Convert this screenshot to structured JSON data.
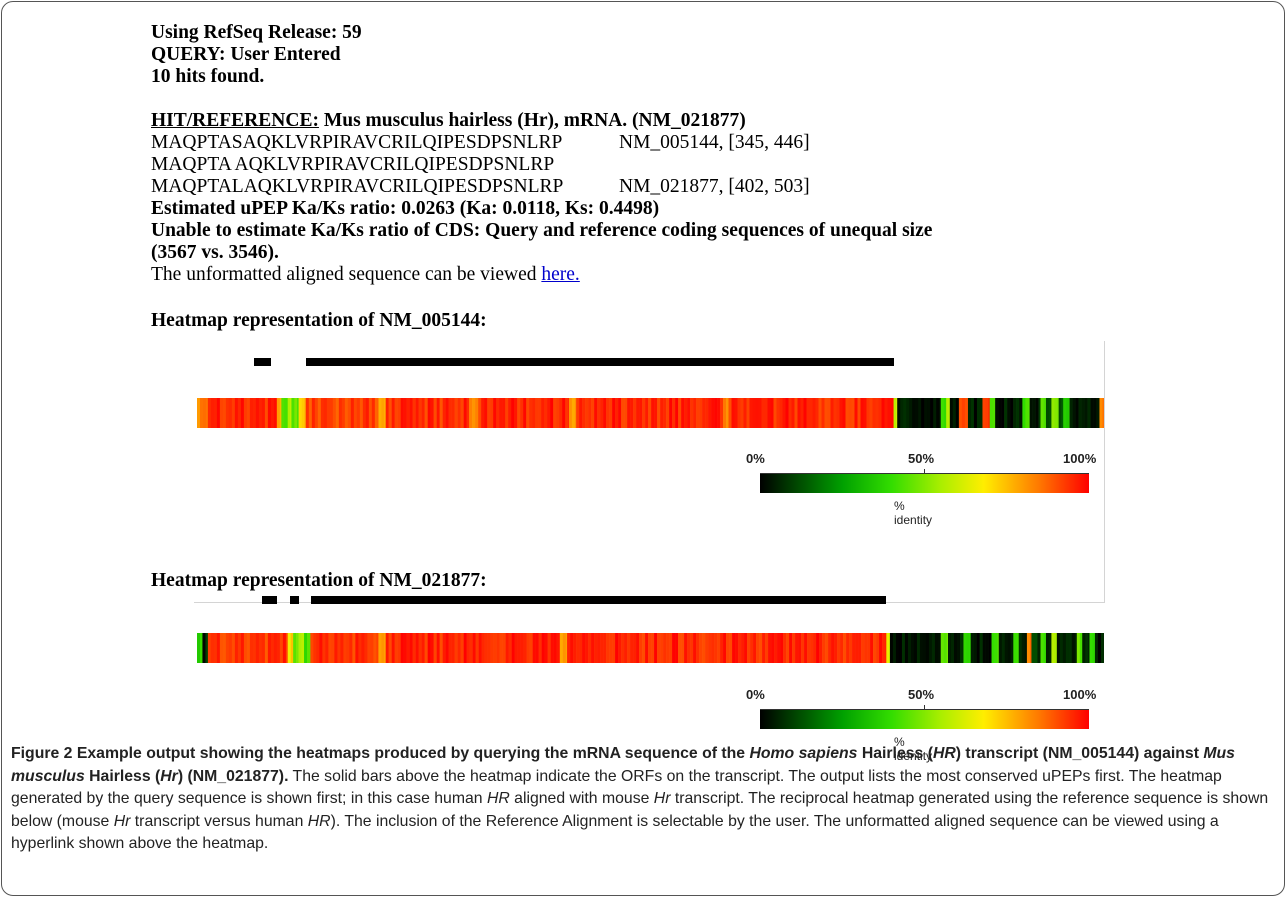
{
  "header": {
    "release": "Using RefSeq Release: 59",
    "query": "QUERY: User Entered",
    "hits": "10 hits found."
  },
  "hit": {
    "label": "HIT/REFERENCE:",
    "title": "Mus musculus hairless (Hr), mRNA. (NM_021877)",
    "seq_query": "MAQPTASAQKLVRPIRAVCRILQIPESDPSNLRP",
    "seq_query_ref": "NM_005144, [345, 446]",
    "seq_match": "MAQPTA AQKLVRPIRAVCRILQIPESDPSNLRP",
    "seq_ref": "MAQPTALAQKLVRPIRAVCRILQIPESDPSNLRP",
    "seq_ref_ref": "NM_021877, [402, 503]",
    "kaks_upep": "Estimated uPEP Ka/Ks ratio: 0.0263 (Ka: 0.0118, Ks: 0.4498)",
    "kaks_cds_1": "Unable to estimate Ka/Ks ratio of CDS: Query and reference coding sequences of unequal size",
    "kaks_cds_2": "(3567 vs. 3546).",
    "unformatted_prefix": "The unformatted aligned sequence can be viewed ",
    "unformatted_link": "here."
  },
  "heatmaps": [
    {
      "heading": "Heatmap representation of NM_005144:",
      "legend": {
        "min": "0%",
        "mid": "50%",
        "max": "100%",
        "caption": "% identity"
      },
      "orfs": [
        [
          0.0625,
          0.082
        ],
        [
          0.12,
          0.768
        ]
      ],
      "identity": [
        {
          "start": 0,
          "end": 0.012,
          "pct": 85
        },
        {
          "start": 0.012,
          "end": 0.088,
          "pct": 95
        },
        {
          "start": 0.088,
          "end": 0.093,
          "pct": 80
        },
        {
          "start": 0.093,
          "end": 0.1,
          "pct": 40
        },
        {
          "start": 0.1,
          "end": 0.104,
          "pct": 60
        },
        {
          "start": 0.104,
          "end": 0.112,
          "pct": 45
        },
        {
          "start": 0.112,
          "end": 0.12,
          "pct": 75
        },
        {
          "start": 0.12,
          "end": 0.2,
          "pct": 92
        },
        {
          "start": 0.2,
          "end": 0.208,
          "pct": 78
        },
        {
          "start": 0.208,
          "end": 0.3,
          "pct": 94
        },
        {
          "start": 0.3,
          "end": 0.31,
          "pct": 80
        },
        {
          "start": 0.31,
          "end": 0.41,
          "pct": 95
        },
        {
          "start": 0.41,
          "end": 0.418,
          "pct": 82
        },
        {
          "start": 0.418,
          "end": 0.58,
          "pct": 95
        },
        {
          "start": 0.58,
          "end": 0.586,
          "pct": 80
        },
        {
          "start": 0.586,
          "end": 0.768,
          "pct": 95
        },
        {
          "start": 0.768,
          "end": 0.772,
          "pct": 60
        },
        {
          "start": 0.772,
          "end": 0.82,
          "pct": 3
        },
        {
          "start": 0.82,
          "end": 0.826,
          "pct": 40
        },
        {
          "start": 0.826,
          "end": 0.83,
          "pct": 60
        },
        {
          "start": 0.83,
          "end": 0.84,
          "pct": 3
        },
        {
          "start": 0.84,
          "end": 0.85,
          "pct": 90
        },
        {
          "start": 0.85,
          "end": 0.866,
          "pct": 3
        },
        {
          "start": 0.866,
          "end": 0.874,
          "pct": 92
        },
        {
          "start": 0.874,
          "end": 0.88,
          "pct": 45
        },
        {
          "start": 0.88,
          "end": 0.91,
          "pct": 3
        },
        {
          "start": 0.91,
          "end": 0.918,
          "pct": 42
        },
        {
          "start": 0.918,
          "end": 0.93,
          "pct": 5
        },
        {
          "start": 0.93,
          "end": 0.936,
          "pct": 45
        },
        {
          "start": 0.936,
          "end": 0.942,
          "pct": 15
        },
        {
          "start": 0.942,
          "end": 0.95,
          "pct": 50
        },
        {
          "start": 0.95,
          "end": 0.955,
          "pct": 10
        },
        {
          "start": 0.955,
          "end": 0.962,
          "pct": 40
        },
        {
          "start": 0.962,
          "end": 0.995,
          "pct": 3
        },
        {
          "start": 0.995,
          "end": 1.0,
          "pct": 85
        }
      ]
    },
    {
      "heading": "Heatmap representation of NM_021877:",
      "legend": {
        "min": "0%",
        "mid": "50%",
        "max": "100%",
        "caption": "% identity"
      },
      "orfs": [
        [
          0.072,
          0.088
        ],
        [
          0.102,
          0.112
        ],
        [
          0.126,
          0.76
        ]
      ],
      "identity": [
        {
          "start": 0,
          "end": 0.006,
          "pct": 40
        },
        {
          "start": 0.006,
          "end": 0.012,
          "pct": 5
        },
        {
          "start": 0.012,
          "end": 0.1,
          "pct": 93
        },
        {
          "start": 0.1,
          "end": 0.106,
          "pct": 70
        },
        {
          "start": 0.106,
          "end": 0.112,
          "pct": 45
        },
        {
          "start": 0.112,
          "end": 0.118,
          "pct": 60
        },
        {
          "start": 0.118,
          "end": 0.125,
          "pct": 42
        },
        {
          "start": 0.125,
          "end": 0.2,
          "pct": 94
        },
        {
          "start": 0.2,
          "end": 0.208,
          "pct": 80
        },
        {
          "start": 0.208,
          "end": 0.4,
          "pct": 95
        },
        {
          "start": 0.4,
          "end": 0.408,
          "pct": 82
        },
        {
          "start": 0.408,
          "end": 0.76,
          "pct": 95
        },
        {
          "start": 0.76,
          "end": 0.764,
          "pct": 60
        },
        {
          "start": 0.764,
          "end": 0.82,
          "pct": 3
        },
        {
          "start": 0.82,
          "end": 0.828,
          "pct": 45
        },
        {
          "start": 0.828,
          "end": 0.845,
          "pct": 3
        },
        {
          "start": 0.845,
          "end": 0.853,
          "pct": 42
        },
        {
          "start": 0.853,
          "end": 0.876,
          "pct": 3
        },
        {
          "start": 0.876,
          "end": 0.884,
          "pct": 44
        },
        {
          "start": 0.884,
          "end": 0.9,
          "pct": 5
        },
        {
          "start": 0.9,
          "end": 0.906,
          "pct": 45
        },
        {
          "start": 0.906,
          "end": 0.915,
          "pct": 5
        },
        {
          "start": 0.915,
          "end": 0.92,
          "pct": 85
        },
        {
          "start": 0.92,
          "end": 0.93,
          "pct": 10
        },
        {
          "start": 0.93,
          "end": 0.936,
          "pct": 42
        },
        {
          "start": 0.936,
          "end": 0.942,
          "pct": 8
        },
        {
          "start": 0.942,
          "end": 0.948,
          "pct": 55
        },
        {
          "start": 0.948,
          "end": 0.97,
          "pct": 3
        },
        {
          "start": 0.97,
          "end": 0.976,
          "pct": 45
        },
        {
          "start": 0.976,
          "end": 0.984,
          "pct": 5
        },
        {
          "start": 0.984,
          "end": 0.99,
          "pct": 42
        },
        {
          "start": 0.99,
          "end": 1.0,
          "pct": 3
        }
      ]
    }
  ],
  "caption": {
    "title_1": "Figure 2 Example output showing the heatmaps produced by querying the mRNA sequence of the ",
    "title_species_1": "Homo sapiens",
    "title_2": " Hairless (",
    "title_gene_1": "HR",
    "title_3": ") transcript (NM_005144) against ",
    "title_species_2": "Mus musculus",
    "title_4": " Hairless (",
    "title_gene_2": "Hr",
    "title_5": ") (NM_021877).",
    "body_1": " The solid bars above the heatmap indicate the ORFs on the transcript. The output lists the most conserved uPEPs first. The heatmap generated by the query sequence is shown first; in this case human ",
    "body_gene_1": "HR",
    "body_2": " aligned with mouse ",
    "body_gene_2": "Hr",
    "body_3": " transcript. The reciprocal heatmap generated using the reference sequence is shown below (mouse ",
    "body_gene_3": "Hr",
    "body_4": " transcript versus human ",
    "body_gene_4": "HR",
    "body_5": "). The inclusion of the Reference Alignment is selectable by the user. The unformatted aligned sequence can be viewed using a hyperlink shown above the heatmap."
  }
}
